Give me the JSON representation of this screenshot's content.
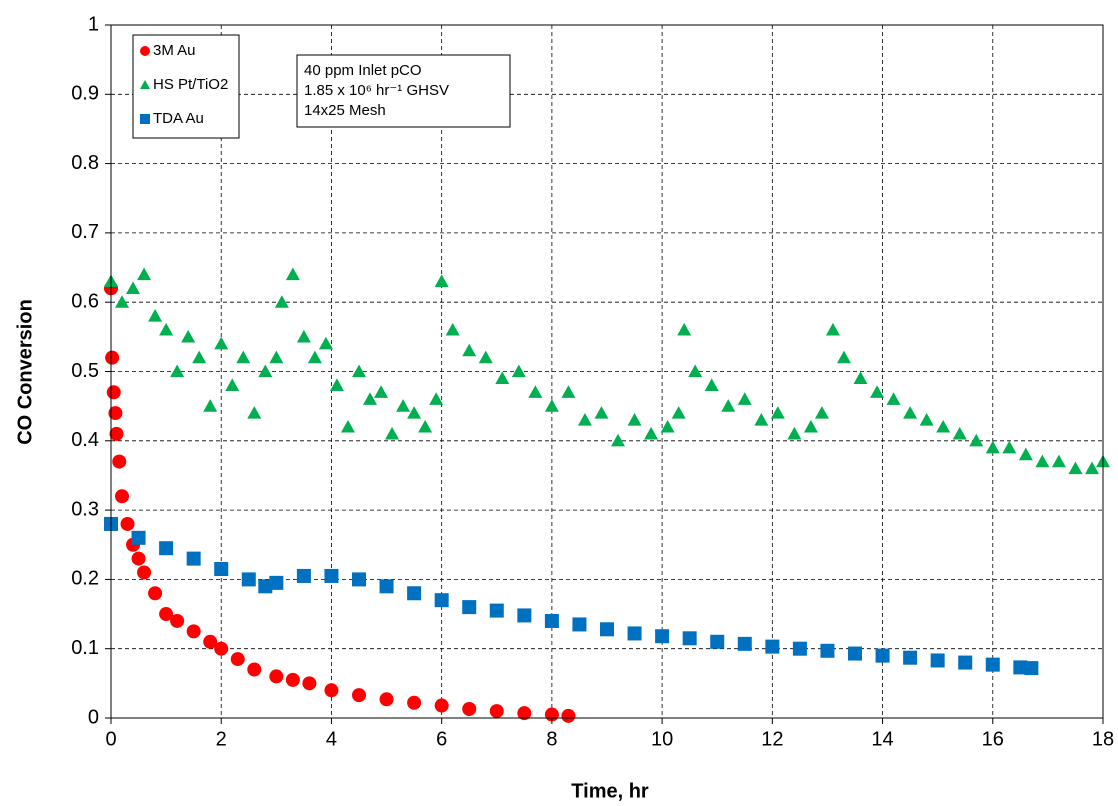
{
  "chart_data": {
    "type": "scatter",
    "xlabel": "Time, hr",
    "ylabel": "CO Conversion",
    "xlim": [
      0,
      18
    ],
    "xticks": [
      0,
      2,
      4,
      6,
      8,
      10,
      12,
      14,
      16,
      18
    ],
    "ylim": [
      0,
      1
    ],
    "yticks": [
      0,
      0.1,
      0.2,
      0.3,
      0.4,
      0.5,
      0.6,
      0.7,
      0.8,
      0.9,
      1
    ],
    "grid": true,
    "legend": "upper left",
    "annotation": [
      "40 ppm Inlet pCO",
      "1.85 x 10⁶ hr⁻¹ GHSV",
      "14x25 Mesh"
    ],
    "series": [
      {
        "name": "3M Au",
        "color": "#ff0000",
        "marker": "circle",
        "x": [
          0,
          0.02,
          0.05,
          0.08,
          0.1,
          0.15,
          0.2,
          0.3,
          0.4,
          0.5,
          0.6,
          0.8,
          1,
          1.2,
          1.5,
          1.8,
          2,
          2.3,
          2.6,
          3,
          3.3,
          3.6,
          4,
          4.5,
          5,
          5.5,
          6,
          6.5,
          7,
          7.5,
          8,
          8.3
        ],
        "values": [
          0.62,
          0.52,
          0.47,
          0.44,
          0.41,
          0.37,
          0.32,
          0.28,
          0.25,
          0.23,
          0.21,
          0.18,
          0.15,
          0.14,
          0.125,
          0.11,
          0.1,
          0.085,
          0.07,
          0.06,
          0.055,
          0.05,
          0.04,
          0.033,
          0.027,
          0.022,
          0.018,
          0.013,
          0.01,
          0.007,
          0.005,
          0.003
        ]
      },
      {
        "name": "HS Pt/TiO2",
        "color": "#00b050",
        "marker": "triangle",
        "x": [
          0,
          0.2,
          0.4,
          0.6,
          0.8,
          1.0,
          1.2,
          1.4,
          1.6,
          1.8,
          2.0,
          2.2,
          2.4,
          2.6,
          2.8,
          3.0,
          3.1,
          3.3,
          3.5,
          3.7,
          3.9,
          4.1,
          4.3,
          4.5,
          4.7,
          4.9,
          5.1,
          5.3,
          5.5,
          5.7,
          5.9,
          6.0,
          6.2,
          6.5,
          6.8,
          7.1,
          7.4,
          7.7,
          8.0,
          8.3,
          8.6,
          8.9,
          9.2,
          9.5,
          9.8,
          10.1,
          10.3,
          10.4,
          10.6,
          10.9,
          11.2,
          11.5,
          11.8,
          12.1,
          12.4,
          12.7,
          12.9,
          13.1,
          13.3,
          13.6,
          13.9,
          14.2,
          14.5,
          14.8,
          15.1,
          15.4,
          15.7,
          16.0,
          16.3,
          16.6,
          16.9,
          17.2,
          17.5,
          17.8,
          18.0
        ],
        "values": [
          0.63,
          0.6,
          0.62,
          0.64,
          0.58,
          0.56,
          0.5,
          0.55,
          0.52,
          0.45,
          0.54,
          0.48,
          0.52,
          0.44,
          0.5,
          0.52,
          0.6,
          0.64,
          0.55,
          0.52,
          0.54,
          0.48,
          0.42,
          0.5,
          0.46,
          0.47,
          0.41,
          0.45,
          0.44,
          0.42,
          0.46,
          0.63,
          0.56,
          0.53,
          0.52,
          0.49,
          0.5,
          0.47,
          0.45,
          0.47,
          0.43,
          0.44,
          0.4,
          0.43,
          0.41,
          0.42,
          0.44,
          0.56,
          0.5,
          0.48,
          0.45,
          0.46,
          0.43,
          0.44,
          0.41,
          0.42,
          0.44,
          0.56,
          0.52,
          0.49,
          0.47,
          0.46,
          0.44,
          0.43,
          0.42,
          0.41,
          0.4,
          0.39,
          0.39,
          0.38,
          0.37,
          0.37,
          0.36,
          0.36,
          0.37
        ]
      },
      {
        "name": "TDA Au",
        "color": "#0070c0",
        "marker": "square",
        "x": [
          0,
          0.5,
          1,
          1.5,
          2,
          2.5,
          2.8,
          3,
          3.5,
          4,
          4.5,
          5,
          5.5,
          6,
          6.5,
          7,
          7.5,
          8,
          8.5,
          9,
          9.5,
          10,
          10.5,
          11,
          11.5,
          12,
          12.5,
          13,
          13.5,
          14,
          14.5,
          15,
          15.5,
          16,
          16.5,
          16.7
        ],
        "values": [
          0.28,
          0.26,
          0.245,
          0.23,
          0.215,
          0.2,
          0.19,
          0.195,
          0.205,
          0.205,
          0.2,
          0.19,
          0.18,
          0.17,
          0.16,
          0.155,
          0.148,
          0.14,
          0.135,
          0.128,
          0.122,
          0.118,
          0.115,
          0.11,
          0.107,
          0.103,
          0.1,
          0.097,
          0.093,
          0.09,
          0.087,
          0.083,
          0.08,
          0.077,
          0.073,
          0.072
        ]
      }
    ]
  }
}
